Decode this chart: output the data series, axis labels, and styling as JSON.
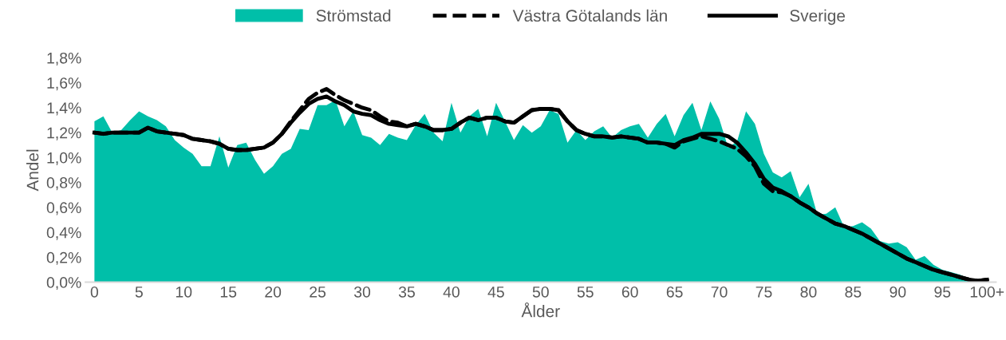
{
  "chart_data": {
    "type": "line",
    "xlabel": "Ålder",
    "ylabel": "Andel",
    "legend": "top",
    "grid": false,
    "x": [
      0,
      1,
      2,
      3,
      4,
      5,
      6,
      7,
      8,
      9,
      10,
      11,
      12,
      13,
      14,
      15,
      16,
      17,
      18,
      19,
      20,
      21,
      22,
      23,
      24,
      25,
      26,
      27,
      28,
      29,
      30,
      31,
      32,
      33,
      34,
      35,
      36,
      37,
      38,
      39,
      40,
      41,
      42,
      43,
      44,
      45,
      46,
      47,
      48,
      49,
      50,
      51,
      52,
      53,
      54,
      55,
      56,
      57,
      58,
      59,
      60,
      61,
      62,
      63,
      64,
      65,
      66,
      67,
      68,
      69,
      70,
      71,
      72,
      73,
      74,
      75,
      76,
      77,
      78,
      79,
      80,
      81,
      82,
      83,
      84,
      85,
      86,
      87,
      88,
      89,
      90,
      91,
      92,
      93,
      94,
      95,
      96,
      97,
      98,
      99,
      100
    ],
    "xlim": [
      -1,
      101
    ],
    "xticks": [
      0,
      5,
      10,
      15,
      20,
      25,
      30,
      35,
      40,
      45,
      50,
      55,
      60,
      65,
      70,
      75,
      80,
      85,
      90,
      95,
      {
        "value": 100,
        "label": "100+"
      }
    ],
    "ylim": [
      0,
      1.8
    ],
    "yticks": [
      {
        "value": 0,
        "label": "0,0%"
      },
      {
        "value": 0.2,
        "label": "0,2%"
      },
      {
        "value": 0.4,
        "label": "0,4%"
      },
      {
        "value": 0.6,
        "label": "0,6%"
      },
      {
        "value": 0.8,
        "label": "0,8%"
      },
      {
        "value": 1.0,
        "label": "1,0%"
      },
      {
        "value": 1.2,
        "label": "1,2%"
      },
      {
        "value": 1.4,
        "label": "1,4%"
      },
      {
        "value": 1.6,
        "label": "1,6%"
      },
      {
        "value": 1.8,
        "label": "1,8%"
      }
    ],
    "series": [
      {
        "name": "Strömstad",
        "type": "area",
        "color": "#00bfa9",
        "values": [
          1.29,
          1.33,
          1.2,
          1.22,
          1.3,
          1.37,
          1.33,
          1.3,
          1.25,
          1.14,
          1.08,
          1.03,
          0.93,
          0.93,
          1.17,
          0.92,
          1.1,
          1.12,
          0.98,
          0.87,
          0.93,
          1.03,
          1.07,
          1.23,
          1.22,
          1.42,
          1.42,
          1.46,
          1.25,
          1.37,
          1.18,
          1.16,
          1.1,
          1.19,
          1.16,
          1.14,
          1.26,
          1.35,
          1.2,
          1.13,
          1.44,
          1.2,
          1.33,
          1.39,
          1.17,
          1.44,
          1.29,
          1.14,
          1.26,
          1.2,
          1.25,
          1.38,
          1.35,
          1.12,
          1.22,
          1.14,
          1.21,
          1.25,
          1.16,
          1.22,
          1.25,
          1.27,
          1.16,
          1.27,
          1.35,
          1.17,
          1.34,
          1.44,
          1.22,
          1.45,
          1.31,
          1.08,
          1.13,
          1.37,
          1.27,
          1.03,
          0.88,
          0.84,
          0.89,
          0.68,
          0.79,
          0.54,
          0.55,
          0.6,
          0.44,
          0.45,
          0.48,
          0.43,
          0.33,
          0.31,
          0.32,
          0.28,
          0.18,
          0.21,
          0.14,
          0.1,
          0.08,
          0.06,
          0.03,
          0.01,
          0.01
        ]
      },
      {
        "name": "Västra Götalands län",
        "line_style": "dashed",
        "color": "#000000",
        "values": [
          1.2,
          1.19,
          1.2,
          1.2,
          1.2,
          1.2,
          1.24,
          1.21,
          1.2,
          1.19,
          1.18,
          1.15,
          1.14,
          1.13,
          1.11,
          1.07,
          1.06,
          1.06,
          1.07,
          1.08,
          1.12,
          1.19,
          1.29,
          1.38,
          1.47,
          1.52,
          1.55,
          1.5,
          1.46,
          1.43,
          1.4,
          1.38,
          1.33,
          1.29,
          1.28,
          1.25,
          1.27,
          1.25,
          1.22,
          1.22,
          1.23,
          1.28,
          1.32,
          1.3,
          1.32,
          1.32,
          1.29,
          1.28,
          1.33,
          1.38,
          1.39,
          1.39,
          1.38,
          1.29,
          1.22,
          1.19,
          1.17,
          1.17,
          1.16,
          1.17,
          1.16,
          1.15,
          1.12,
          1.12,
          1.11,
          1.08,
          1.13,
          1.15,
          1.17,
          1.15,
          1.13,
          1.1,
          1.07,
          1.01,
          0.93,
          0.79,
          0.73,
          0.72,
          0.69,
          0.64,
          0.6,
          0.55,
          0.51,
          0.47,
          0.45,
          0.42,
          0.39,
          0.35,
          0.31,
          0.27,
          0.23,
          0.19,
          0.16,
          0.13,
          0.1,
          0.08,
          0.06,
          0.04,
          0.02,
          0.01,
          0.02
        ]
      },
      {
        "name": "Sverige",
        "line_style": "solid",
        "color": "#000000",
        "values": [
          1.2,
          1.19,
          1.2,
          1.2,
          1.2,
          1.2,
          1.24,
          1.21,
          1.2,
          1.19,
          1.18,
          1.15,
          1.14,
          1.13,
          1.11,
          1.07,
          1.06,
          1.06,
          1.07,
          1.08,
          1.12,
          1.19,
          1.28,
          1.36,
          1.43,
          1.47,
          1.49,
          1.45,
          1.42,
          1.37,
          1.35,
          1.34,
          1.3,
          1.27,
          1.26,
          1.25,
          1.27,
          1.25,
          1.22,
          1.22,
          1.23,
          1.28,
          1.32,
          1.3,
          1.32,
          1.32,
          1.29,
          1.28,
          1.33,
          1.38,
          1.39,
          1.39,
          1.38,
          1.29,
          1.22,
          1.19,
          1.17,
          1.17,
          1.16,
          1.17,
          1.16,
          1.15,
          1.12,
          1.12,
          1.11,
          1.1,
          1.14,
          1.16,
          1.19,
          1.19,
          1.19,
          1.17,
          1.12,
          1.04,
          0.95,
          0.83,
          0.76,
          0.73,
          0.69,
          0.64,
          0.6,
          0.55,
          0.51,
          0.47,
          0.45,
          0.42,
          0.39,
          0.35,
          0.31,
          0.27,
          0.23,
          0.19,
          0.16,
          0.13,
          0.1,
          0.08,
          0.06,
          0.04,
          0.02,
          0.01,
          0.02
        ]
      }
    ]
  }
}
